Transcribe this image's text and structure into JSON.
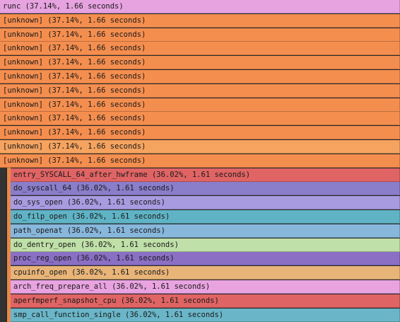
{
  "flamegraph": {
    "frames": [
      {
        "label": "runc (37.14%, 1.66 seconds)",
        "color": "#e6a3e0"
      },
      {
        "label": "[unknown] (37.14%, 1.66 seconds)",
        "color": "#f48e4f"
      },
      {
        "label": "[unknown] (37.14%, 1.66 seconds)",
        "color": "#f48e4f"
      },
      {
        "label": "[unknown] (37.14%, 1.66 seconds)",
        "color": "#f48e4f"
      },
      {
        "label": "[unknown] (37.14%, 1.66 seconds)",
        "color": "#f48e4f"
      },
      {
        "label": "[unknown] (37.14%, 1.66 seconds)",
        "color": "#f48e4f"
      },
      {
        "label": "[unknown] (37.14%, 1.66 seconds)",
        "color": "#f48e4f"
      },
      {
        "label": "[unknown] (37.14%, 1.66 seconds)",
        "color": "#f48e4f"
      },
      {
        "label": "[unknown] (37.14%, 1.66 seconds)",
        "color": "#f48e4f"
      },
      {
        "label": "[unknown] (37.14%, 1.66 seconds)",
        "color": "#f48e4f"
      },
      {
        "label": "[unknown] (37.14%, 1.66 seconds)",
        "color": "#f5a35f"
      },
      {
        "label": "[unknown] (37.14%, 1.66 seconds)",
        "color": "#f48e4f"
      },
      {
        "label": "entry_SYSCALL_64_after_hwframe (36.02%, 1.61 seconds)",
        "color": "#e06464"
      },
      {
        "label": "do_syscall_64 (36.02%, 1.61 seconds)",
        "color": "#8a7dc9"
      },
      {
        "label": "do_sys_open (36.02%, 1.61 seconds)",
        "color": "#a89be0"
      },
      {
        "label": "do_filp_open (36.02%, 1.61 seconds)",
        "color": "#5fb3c5"
      },
      {
        "label": "path_openat (36.02%, 1.61 seconds)",
        "color": "#88b7dc"
      },
      {
        "label": "do_dentry_open (36.02%, 1.61 seconds)",
        "color": "#bfe0a8"
      },
      {
        "label": "proc_reg_open (36.02%, 1.61 seconds)",
        "color": "#8a6fc4"
      },
      {
        "label": "cpuinfo_open (36.02%, 1.61 seconds)",
        "color": "#e8b478"
      },
      {
        "label": "arch_freq_prepare_all (36.02%, 1.61 seconds)",
        "color": "#e8a3e0"
      },
      {
        "label": "aperfmperf_snapshot_cpu (36.02%, 1.61 seconds)",
        "color": "#e06464"
      },
      {
        "label": "smp_call_function_single (36.02%, 1.61 seconds)",
        "color": "#6ab6c8"
      }
    ]
  }
}
